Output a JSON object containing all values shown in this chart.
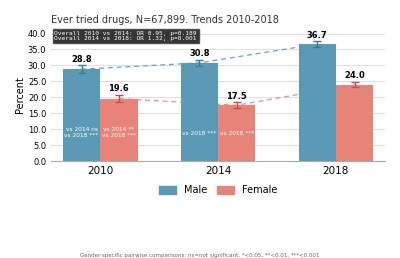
{
  "title": "Ever tried drugs, N=67,899. Trends 2010-2018",
  "ylabel": "Percent",
  "years": [
    "2010",
    "2014",
    "2018"
  ],
  "male_values": [
    28.8,
    30.8,
    36.7
  ],
  "female_values": [
    19.6,
    17.5,
    24.0
  ],
  "male_errors": [
    1.2,
    1.0,
    0.9
  ],
  "female_errors": [
    1.2,
    0.9,
    0.8
  ],
  "male_color": "#5b9ab5",
  "female_color": "#e8837a",
  "ylim": [
    0,
    42
  ],
  "yticks": [
    0.0,
    5.0,
    10.0,
    15.0,
    20.0,
    25.0,
    30.0,
    35.0,
    40.0
  ],
  "bar_width": 0.38,
  "male_annotations_2010": "vs 2014 ns\nvs 2018 ***",
  "female_annotations_2010": "vs 2014 **\nvs 2018 ***",
  "male_annotations_2014": "vs 2018 ***",
  "female_annotations_2014": "vs 2018 ***",
  "footnote": "Gender-specific pairwise comparisons: ns=not significant, *<0.05, **<0.01, ***<0.001",
  "background_color": "#ffffff",
  "grid_color": "#e0e0e0"
}
